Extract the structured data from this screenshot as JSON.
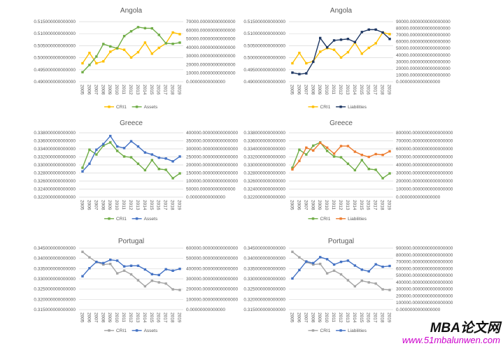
{
  "style": {
    "grid_color": "#d9d9d9",
    "axis_text_color": "#595959",
    "background": "#ffffff"
  },
  "watermark": {
    "title": "MBA论文网",
    "url": "www.51mbalunwen.com",
    "title_color": "#111111",
    "url_color": "#cc00cc"
  },
  "chart_data": [
    {
      "type": "line",
      "title": "Angola",
      "legend_position": "bottom",
      "grid": true,
      "categories": [
        "2005",
        "2006",
        "2007",
        "2008",
        "2009",
        "2010",
        "2011",
        "2012",
        "2013",
        "2014",
        "2015",
        "2016",
        "2017",
        "2018",
        "2019"
      ],
      "left_axis": {
        "min": 0.49,
        "max": 0.515,
        "label_ticks": [
          "0.515000000000000",
          "0.510000000000000",
          "0.505000000000000",
          "0.500000000000000",
          "0.495000000000000",
          "0.490000000000000"
        ]
      },
      "right_axis": {
        "min": 0,
        "max": 70000,
        "label_ticks": [
          "70000.00000000000000",
          "60000.00000000000000",
          "50000.00000000000000",
          "40000.00000000000000",
          "30000.00000000000000",
          "20000.00000000000000",
          "10000.00000000000000",
          "0.00000000000000"
        ]
      },
      "series": [
        {
          "name": "CRI1",
          "axis": "left",
          "color": "#FFC000",
          "values": [
            0.4977,
            0.502,
            0.4977,
            0.4985,
            0.5025,
            0.504,
            0.5033,
            0.5001,
            0.5023,
            0.5063,
            0.5017,
            0.5041,
            0.506,
            0.5105,
            0.5098
          ]
        },
        {
          "name": "Assets",
          "axis": "right",
          "color": "#70AD47",
          "values": [
            11200,
            19600,
            29400,
            44000,
            41200,
            38900,
            53200,
            58800,
            63600,
            62400,
            62200,
            54600,
            44800,
            44200,
            45600
          ]
        }
      ]
    },
    {
      "type": "line",
      "title": "Angola",
      "legend_position": "bottom",
      "grid": true,
      "categories": [
        "2005",
        "2006",
        "2007",
        "2008",
        "2009",
        "2010",
        "2011",
        "2012",
        "2013",
        "2014",
        "2015",
        "2016",
        "2017",
        "2018",
        "2019"
      ],
      "left_axis": {
        "min": 0.49,
        "max": 0.515,
        "label_ticks": [
          "0.515000000000000",
          "0.510000000000000",
          "0.505000000000000",
          "0.500000000000000",
          "0.495000000000000",
          "0.490000000000000"
        ]
      },
      "right_axis": {
        "min": 0,
        "max": 90000,
        "label_ticks": [
          "90000.0000000000000000",
          "80000.0000000000000000",
          "70000.0000000000000000",
          "60000.0000000000000000",
          "50000.0000000000000000",
          "40000.0000000000000000",
          "30000.0000000000000000",
          "20000.0000000000000000",
          "10000.0000000000000000",
          "0.0000000000000000"
        ]
      },
      "series": [
        {
          "name": "CRI1",
          "axis": "left",
          "color": "#FFC000",
          "values": [
            0.4977,
            0.502,
            0.4977,
            0.4985,
            0.5025,
            0.504,
            0.5033,
            0.5001,
            0.5023,
            0.5063,
            0.5017,
            0.5041,
            0.506,
            0.5105,
            0.5098
          ]
        },
        {
          "name": "Liabilities",
          "axis": "right",
          "color": "#1F3864",
          "values": [
            13700,
            11500,
            12600,
            29900,
            65500,
            51500,
            61900,
            63000,
            64100,
            59400,
            74500,
            78100,
            78100,
            73800,
            64100
          ]
        }
      ]
    },
    {
      "type": "line",
      "title": "Greece",
      "legend_position": "bottom",
      "grid": true,
      "categories": [
        "2005",
        "2006",
        "2007",
        "2008",
        "2009",
        "2010",
        "2011",
        "2012",
        "2013",
        "2014",
        "2015",
        "2016",
        "2017",
        "2018",
        "2019"
      ],
      "left_axis": {
        "min": 0.322,
        "max": 0.338,
        "label_ticks": [
          "0.338000000000000",
          "0.336000000000000",
          "0.334000000000000",
          "0.332000000000000",
          "0.330000000000000",
          "0.328000000000000",
          "0.326000000000000",
          "0.324000000000000",
          "0.322000000000000"
        ]
      },
      "right_axis": {
        "min": 0,
        "max": 400000,
        "label_ticks": [
          "400000.00000000000000",
          "350000.00000000000000",
          "300000.00000000000000",
          "250000.00000000000000",
          "200000.00000000000000",
          "150000.00000000000000",
          "100000.00000000000000",
          "50000.00000000000000",
          "0.00000000000000"
        ]
      },
      "series": [
        {
          "name": "CRI1",
          "axis": "left",
          "color": "#70AD47",
          "values": [
            0.3293,
            0.3338,
            0.3326,
            0.3348,
            0.3356,
            0.3335,
            0.3321,
            0.3319,
            0.3303,
            0.3287,
            0.3312,
            0.329,
            0.3288,
            0.3267,
            0.3279
          ]
        },
        {
          "name": "Assets",
          "axis": "right",
          "color": "#4472C4",
          "values": [
            160000,
            207500,
            295000,
            330000,
            380000,
            315000,
            305000,
            347500,
            315000,
            277500,
            265000,
            245000,
            240000,
            222500,
            252500
          ]
        }
      ]
    },
    {
      "type": "line",
      "title": "Greece",
      "legend_position": "bottom",
      "grid": true,
      "categories": [
        "2005",
        "2006",
        "2007",
        "2008",
        "2009",
        "2010",
        "2011",
        "2012",
        "2013",
        "2014",
        "2015",
        "2016",
        "2017",
        "2018",
        "2019"
      ],
      "left_axis": {
        "min": 0.322,
        "max": 0.338,
        "label_ticks": [
          "0.338000000000000",
          "0.336000000000000",
          "0.334000000000000",
          "0.332000000000000",
          "0.330000000000000",
          "0.328000000000000",
          "0.326000000000000",
          "0.324000000000000",
          "0.322000000000000"
        ]
      },
      "right_axis": {
        "min": 0,
        "max": 800000,
        "label_ticks": [
          "800000.0000000000000000",
          "700000.0000000000000000",
          "600000.0000000000000000",
          "500000.0000000000000000",
          "400000.0000000000000000",
          "300000.0000000000000000",
          "200000.0000000000000000",
          "100000.0000000000000000",
          "0.0000000000000000"
        ]
      },
      "series": [
        {
          "name": "CRI1",
          "axis": "left",
          "color": "#70AD47",
          "values": [
            0.3293,
            0.3338,
            0.3326,
            0.3348,
            0.3356,
            0.3335,
            0.3321,
            0.3319,
            0.3303,
            0.3287,
            0.3312,
            0.329,
            0.3288,
            0.3267,
            0.3279
          ]
        },
        {
          "name": "Liabilities",
          "axis": "right",
          "color": "#ED7D31",
          "values": [
            345000,
            450000,
            615000,
            580000,
            675000,
            615000,
            540000,
            635000,
            635000,
            565000,
            525000,
            500000,
            535000,
            525000,
            570000
          ]
        }
      ]
    },
    {
      "type": "line",
      "title": "Portugal",
      "legend_position": "bottom",
      "grid": true,
      "categories": [
        "2005",
        "2006",
        "2007",
        "2008",
        "2009",
        "2010",
        "2011",
        "2012",
        "2013",
        "2014",
        "2015",
        "2016",
        "2017",
        "2018",
        "2019"
      ],
      "left_axis": {
        "min": 0.315,
        "max": 0.345,
        "label_ticks": [
          "0.345000000000000",
          "0.340000000000000",
          "0.335000000000000",
          "0.330000000000000",
          "0.325000000000000",
          "0.320000000000000",
          "0.315000000000000"
        ]
      },
      "right_axis": {
        "min": 0,
        "max": 600000,
        "label_ticks": [
          "600000.00000000000000",
          "500000.00000000000000",
          "400000.00000000000000",
          "300000.00000000000000",
          "200000.00000000000000",
          "100000.00000000000000",
          "0.00000000000000"
        ]
      },
      "series": [
        {
          "name": "CRI1",
          "axis": "left",
          "color": "#A5A5A5",
          "values": [
            0.3432,
            0.3405,
            0.3382,
            0.337,
            0.3373,
            0.3327,
            0.334,
            0.3322,
            0.3293,
            0.3264,
            0.3291,
            0.3283,
            0.3277,
            0.3249,
            0.3246
          ]
        },
        {
          "name": "Assets",
          "axis": "right",
          "color": "#4472C4",
          "values": [
            326000,
            404000,
            466000,
            454000,
            486000,
            478000,
            422000,
            428000,
            428000,
            392000,
            346000,
            338000,
            394000,
            380000,
            398000
          ]
        }
      ]
    },
    {
      "type": "line",
      "title": "Portugal",
      "legend_position": "bottom",
      "grid": true,
      "categories": [
        "2005",
        "2006",
        "2007",
        "2008",
        "2009",
        "2010",
        "2011",
        "2012",
        "2013",
        "2014",
        "2015",
        "2016",
        "2017",
        "2018",
        "2019"
      ],
      "left_axis": {
        "min": 0.315,
        "max": 0.345,
        "label_ticks": [
          "0.345000000000000",
          "0.340000000000000",
          "0.335000000000000",
          "0.330000000000000",
          "0.325000000000000",
          "0.320000000000000",
          "0.315000000000000"
        ]
      },
      "right_axis": {
        "min": 0,
        "max": 900000,
        "label_ticks": [
          "900000.0000000000000000",
          "800000.0000000000000000",
          "700000.0000000000000000",
          "600000.0000000000000000",
          "500000.0000000000000000",
          "400000.0000000000000000",
          "300000.0000000000000000",
          "200000.0000000000000000",
          "100000.0000000000000000",
          "0.0000000000000000"
        ]
      },
      "series": [
        {
          "name": "CRI1",
          "axis": "left",
          "color": "#A5A5A5",
          "values": [
            0.3432,
            0.3405,
            0.3382,
            0.337,
            0.3373,
            0.3327,
            0.334,
            0.3322,
            0.3293,
            0.3264,
            0.3291,
            0.3283,
            0.3277,
            0.3249,
            0.3246
          ]
        },
        {
          "name": "Liabilities",
          "axis": "right",
          "color": "#4472C4",
          "values": [
            456000,
            579000,
            705000,
            681000,
            768000,
            738000,
            660000,
            699000,
            717000,
            645000,
            585000,
            561000,
            663000,
            627000,
            639000
          ]
        }
      ]
    }
  ]
}
